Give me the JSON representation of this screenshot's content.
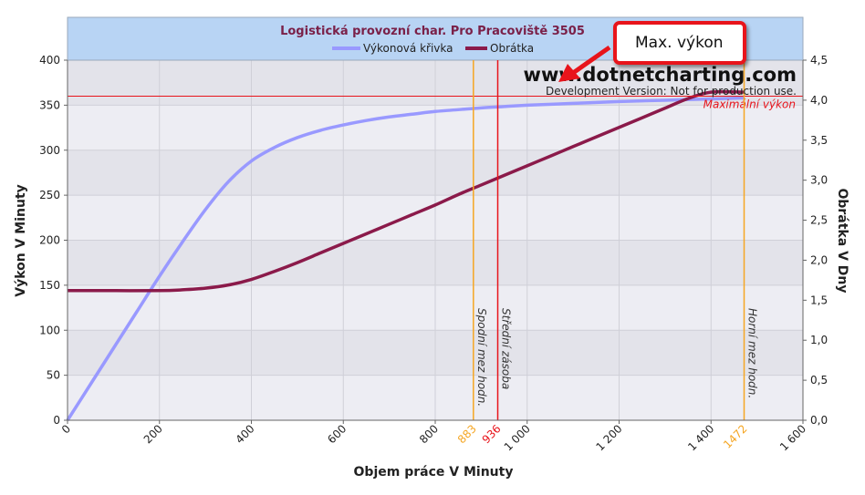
{
  "chart_data": {
    "type": "line",
    "title": "Logistická provozní char. Pro Pracoviště 3505",
    "xlabel": "Objem práce V Minuty",
    "ylabel": "Výkon V Minuty",
    "y2label": "Obrátka V Dny",
    "xlim": [
      0,
      1600
    ],
    "ylim": [
      0,
      400
    ],
    "y2lim": [
      0,
      4.5
    ],
    "x_ticks": [
      "0",
      "200",
      "400",
      "600",
      "800",
      "1 000",
      "1 200",
      "1 400",
      "1 600"
    ],
    "y_ticks": [
      "0",
      "50",
      "100",
      "150",
      "200",
      "250",
      "300",
      "350",
      "400"
    ],
    "y2_ticks": [
      "0,0",
      "0,5",
      "1,0",
      "1,5",
      "2,0",
      "2,5",
      "3,0",
      "3,5",
      "4,0",
      "4,5"
    ],
    "grid": true,
    "legend_position": "top-center",
    "series": [
      {
        "name": "Výkonová křivka",
        "axis": "left",
        "color": "#9999ff",
        "points": [
          [
            0,
            0
          ],
          [
            50,
            40
          ],
          [
            100,
            80
          ],
          [
            150,
            120
          ],
          [
            200,
            160
          ],
          [
            250,
            198
          ],
          [
            300,
            234
          ],
          [
            350,
            265
          ],
          [
            400,
            288
          ],
          [
            450,
            303
          ],
          [
            500,
            314
          ],
          [
            550,
            322
          ],
          [
            600,
            328
          ],
          [
            650,
            333
          ],
          [
            700,
            337
          ],
          [
            750,
            340
          ],
          [
            800,
            343
          ],
          [
            850,
            345
          ],
          [
            900,
            347
          ],
          [
            950,
            348.5
          ],
          [
            1000,
            350
          ],
          [
            1100,
            352
          ],
          [
            1200,
            354
          ],
          [
            1300,
            355.5
          ],
          [
            1400,
            357
          ],
          [
            1472,
            358
          ]
        ]
      },
      {
        "name": "Obrátka",
        "axis": "right",
        "color": "#8b1a4a",
        "points": [
          [
            0,
            1.62
          ],
          [
            100,
            1.62
          ],
          [
            200,
            1.62
          ],
          [
            250,
            1.63
          ],
          [
            300,
            1.65
          ],
          [
            350,
            1.69
          ],
          [
            400,
            1.76
          ],
          [
            450,
            1.86
          ],
          [
            500,
            1.97
          ],
          [
            550,
            2.09
          ],
          [
            600,
            2.21
          ],
          [
            650,
            2.33
          ],
          [
            700,
            2.45
          ],
          [
            750,
            2.57
          ],
          [
            800,
            2.69
          ],
          [
            850,
            2.82
          ],
          [
            900,
            2.94
          ],
          [
            950,
            3.06
          ],
          [
            1000,
            3.18
          ],
          [
            1050,
            3.3
          ],
          [
            1100,
            3.42
          ],
          [
            1150,
            3.54
          ],
          [
            1200,
            3.66
          ],
          [
            1250,
            3.78
          ],
          [
            1300,
            3.9
          ],
          [
            1350,
            4.02
          ],
          [
            1400,
            4.1
          ],
          [
            1472,
            4.1
          ]
        ]
      }
    ],
    "reference_lines": {
      "horizontal": [
        {
          "value": 360,
          "label": "Maximální výkon",
          "color": "#e8141b"
        }
      ],
      "vertical": [
        {
          "value": 883,
          "label": "Spodní mez hodn.",
          "value_label": "883",
          "color": "#f5a623",
          "value_color": "#f5a623"
        },
        {
          "value": 936,
          "label": "Střední zásoba",
          "value_label": "936",
          "color": "#e8141b",
          "value_color": "#e8141b"
        },
        {
          "value": 1472,
          "label": "Horní mez hodn.",
          "value_label": "1472",
          "color": "#f5a623",
          "value_color": "#f5a623"
        }
      ]
    },
    "watermark": "www.dotnetcharting.com",
    "dev_note": "Development Version: Not for production use."
  },
  "callout": {
    "text": "Max. výkon"
  },
  "colors": {
    "header_bg": "#b8d4f4",
    "plot_band_dark": "#e3e3ea",
    "plot_band_light": "#ededf3",
    "title": "#7a2048"
  }
}
